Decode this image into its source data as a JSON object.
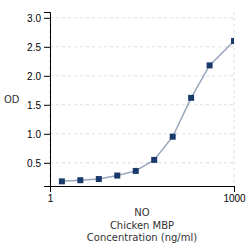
{
  "chart_data": {
    "type": "line",
    "x_label": "NO\nChicken MBP\nConcentration (ng/ml)",
    "y_label": "OD",
    "x": [
      1.563,
      3.125,
      6.25,
      12.5,
      25,
      50,
      100,
      200,
      400,
      1000
    ],
    "series": [
      {
        "color": "#1A3A6B",
        "marker": "square",
        "values": [
          0.18,
          0.2,
          0.22,
          0.28,
          0.36,
          0.55,
          0.95,
          1.62,
          2.18,
          2.6
        ]
      }
    ],
    "xlim": [
      1,
      1000
    ],
    "ylim": [
      0.1,
      3.1
    ],
    "xticks": [
      1,
      1000
    ],
    "yticks": [
      0.5,
      {
        "value": 1,
        "label": "1.0"
      },
      1.5,
      {
        "value": 2,
        "label": "2.0"
      },
      2.5,
      {
        "value": 3,
        "label": "3.0"
      }
    ],
    "log": "x",
    "grid": true
  }
}
